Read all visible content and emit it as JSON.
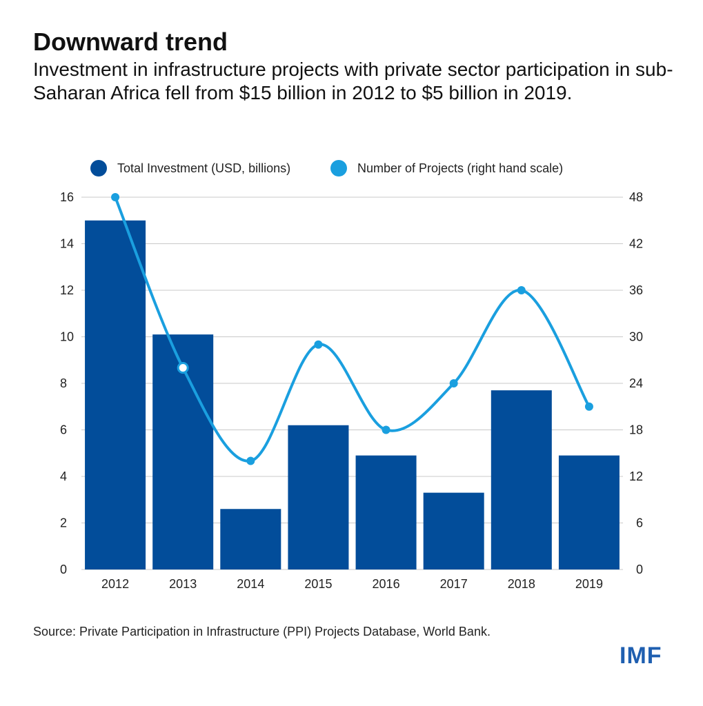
{
  "header": {
    "title": "Downward trend",
    "subtitle": "Investment in infrastructure projects with private sector participation in sub-Saharan Africa fell from $15 billion in 2012 to $5 billion in 2019."
  },
  "footer": {
    "source": "Source: Private Participation in Infrastructure (PPI) Projects Database, World Bank.",
    "logo": "IMF"
  },
  "colors": {
    "bar": "#024D9A",
    "line": "#1A9FDF",
    "grid": "#c8c8c8",
    "axis_text": "#222222"
  },
  "chart_data": {
    "type": "bar",
    "categories": [
      "2012",
      "2013",
      "2014",
      "2015",
      "2016",
      "2017",
      "2018",
      "2019"
    ],
    "series": [
      {
        "name": "Total Investment (USD, billions)",
        "type": "bar",
        "axis": "left",
        "values": [
          15,
          10.1,
          2.6,
          6.2,
          4.9,
          3.3,
          7.7,
          4.9
        ]
      },
      {
        "name": "Number of Projects (right hand scale)",
        "type": "line",
        "axis": "right",
        "values": [
          48,
          26,
          14,
          29,
          18,
          24,
          36,
          21
        ]
      }
    ],
    "y_left": {
      "ticks": [
        "0",
        "2",
        "4",
        "6",
        "8",
        "10",
        "12",
        "14",
        "16"
      ],
      "ylim": [
        0,
        16
      ]
    },
    "y_right": {
      "ticks": [
        "0",
        "6",
        "12",
        "18",
        "24",
        "30",
        "36",
        "42",
        "48"
      ],
      "ylim": [
        0,
        48
      ]
    },
    "grid": true,
    "legend_position": "top"
  }
}
